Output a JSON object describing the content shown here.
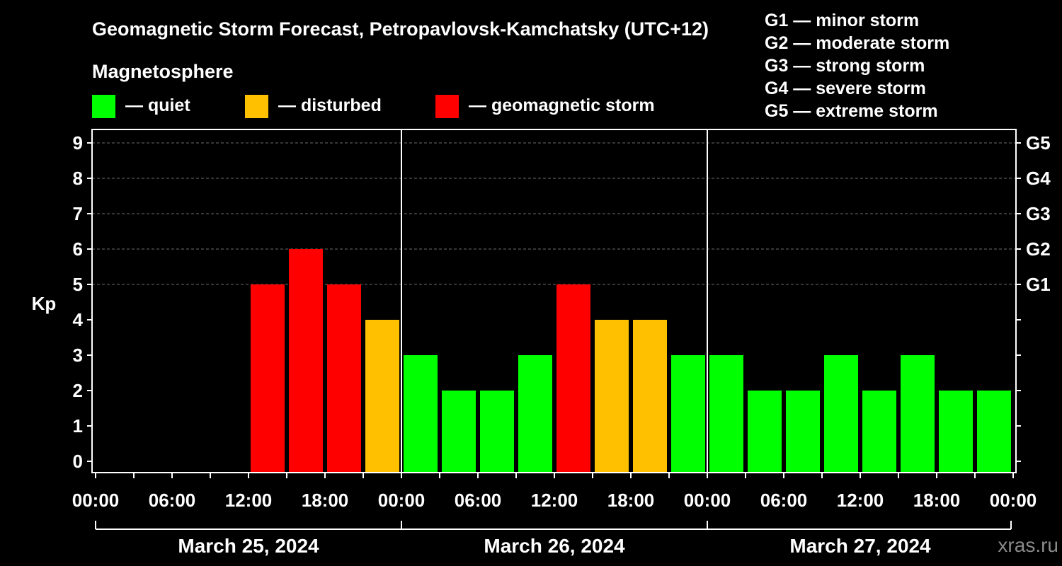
{
  "chart_data": {
    "type": "bar",
    "title": "Geomagnetic Storm Forecast, Petropavlovsk-Kamchatsky (UTC+12)",
    "subtitle": "Magnetosphere",
    "ylabel": "Kp",
    "ylim": [
      0,
      9
    ],
    "yticks": [
      "0",
      "1",
      "2",
      "3",
      "4",
      "5",
      "6",
      "7",
      "8",
      "9"
    ],
    "right_ticks": [
      {
        "kp": 5,
        "label": "G1"
      },
      {
        "kp": 6,
        "label": "G2"
      },
      {
        "kp": 7,
        "label": "G3"
      },
      {
        "kp": 8,
        "label": "G4"
      },
      {
        "kp": 9,
        "label": "G5"
      }
    ],
    "xtick_labels": [
      "00:00",
      "06:00",
      "12:00",
      "18:00",
      "00:00",
      "06:00",
      "12:00",
      "18:00",
      "00:00",
      "06:00",
      "12:00",
      "18:00",
      "00:00"
    ],
    "dates": [
      "March 25, 2024",
      "March 26, 2024",
      "March 27, 2024"
    ],
    "legend": [
      {
        "label": "— quiet",
        "color": "#00ff00"
      },
      {
        "label": "— disturbed",
        "color": "#ffc000"
      },
      {
        "label": "— geomagnetic storm",
        "color": "#ff0000"
      }
    ],
    "storm_scale": [
      "G1 — minor storm",
      "G2 — moderate storm",
      "G3 — strong storm",
      "G4 — severe storm",
      "G5 — extreme storm"
    ],
    "grid": true,
    "bars": [
      {
        "day": 0,
        "slot": 4,
        "kp": 5,
        "color": "#ff0000"
      },
      {
        "day": 0,
        "slot": 5,
        "kp": 6,
        "color": "#ff0000"
      },
      {
        "day": 0,
        "slot": 6,
        "kp": 5,
        "color": "#ff0000"
      },
      {
        "day": 0,
        "slot": 7,
        "kp": 4,
        "color": "#ffc000"
      },
      {
        "day": 1,
        "slot": 0,
        "kp": 3,
        "color": "#00ff00"
      },
      {
        "day": 1,
        "slot": 1,
        "kp": 2,
        "color": "#00ff00"
      },
      {
        "day": 1,
        "slot": 2,
        "kp": 2,
        "color": "#00ff00"
      },
      {
        "day": 1,
        "slot": 3,
        "kp": 3,
        "color": "#00ff00"
      },
      {
        "day": 1,
        "slot": 4,
        "kp": 5,
        "color": "#ff0000"
      },
      {
        "day": 1,
        "slot": 5,
        "kp": 4,
        "color": "#ffc000"
      },
      {
        "day": 1,
        "slot": 6,
        "kp": 4,
        "color": "#ffc000"
      },
      {
        "day": 1,
        "slot": 7,
        "kp": 3,
        "color": "#00ff00"
      },
      {
        "day": 2,
        "slot": 0,
        "kp": 3,
        "color": "#00ff00"
      },
      {
        "day": 2,
        "slot": 1,
        "kp": 2,
        "color": "#00ff00"
      },
      {
        "day": 2,
        "slot": 2,
        "kp": 2,
        "color": "#00ff00"
      },
      {
        "day": 2,
        "slot": 3,
        "kp": 3,
        "color": "#00ff00"
      },
      {
        "day": 2,
        "slot": 4,
        "kp": 2,
        "color": "#00ff00"
      },
      {
        "day": 2,
        "slot": 5,
        "kp": 3,
        "color": "#00ff00"
      },
      {
        "day": 2,
        "slot": 6,
        "kp": 2,
        "color": "#00ff00"
      },
      {
        "day": 2,
        "slot": 7,
        "kp": 2,
        "color": "#00ff00"
      }
    ]
  },
  "watermark": "xras.ru"
}
